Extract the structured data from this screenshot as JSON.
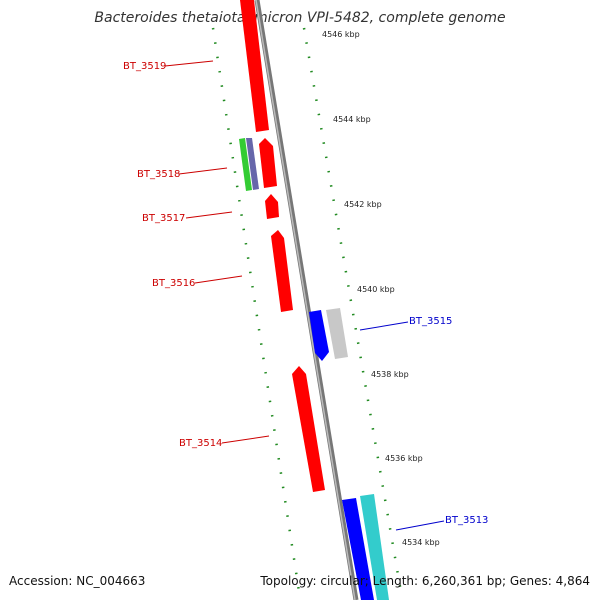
{
  "title": "Bacteroides thetaiotaomicron VPI-5482, complete genome",
  "footer": {
    "accession": "Accession: NC_004663",
    "topology": "Topology: circular; Length: 6,260,361 bp; Genes: 4,864"
  },
  "ticks": [
    "4546 kbp",
    "4544 kbp",
    "4542 kbp",
    "4540 kbp",
    "4538 kbp",
    "4536 kbp",
    "4534 kbp"
  ],
  "genes": [
    {
      "label": "BT_3519",
      "color": "#cc0000"
    },
    {
      "label": "BT_3518",
      "color": "#cc0000"
    },
    {
      "label": "BT_3517",
      "color": "#cc0000"
    },
    {
      "label": "BT_3516",
      "color": "#cc0000"
    },
    {
      "label": "BT_3515",
      "color": "#0000cc"
    },
    {
      "label": "BT_3514",
      "color": "#cc0000"
    },
    {
      "label": "BT_3513",
      "color": "#0000cc"
    }
  ],
  "colors": {
    "reverse_gene": "#ff0000",
    "forward_gene": "#0000ff",
    "backbone": "#888888",
    "gc_dots": "#228b22",
    "green_feature": "#33cc33",
    "purple_feature": "#6666aa",
    "grey_feature": "#c8c8c8",
    "cyan_feature": "#33cccc"
  }
}
